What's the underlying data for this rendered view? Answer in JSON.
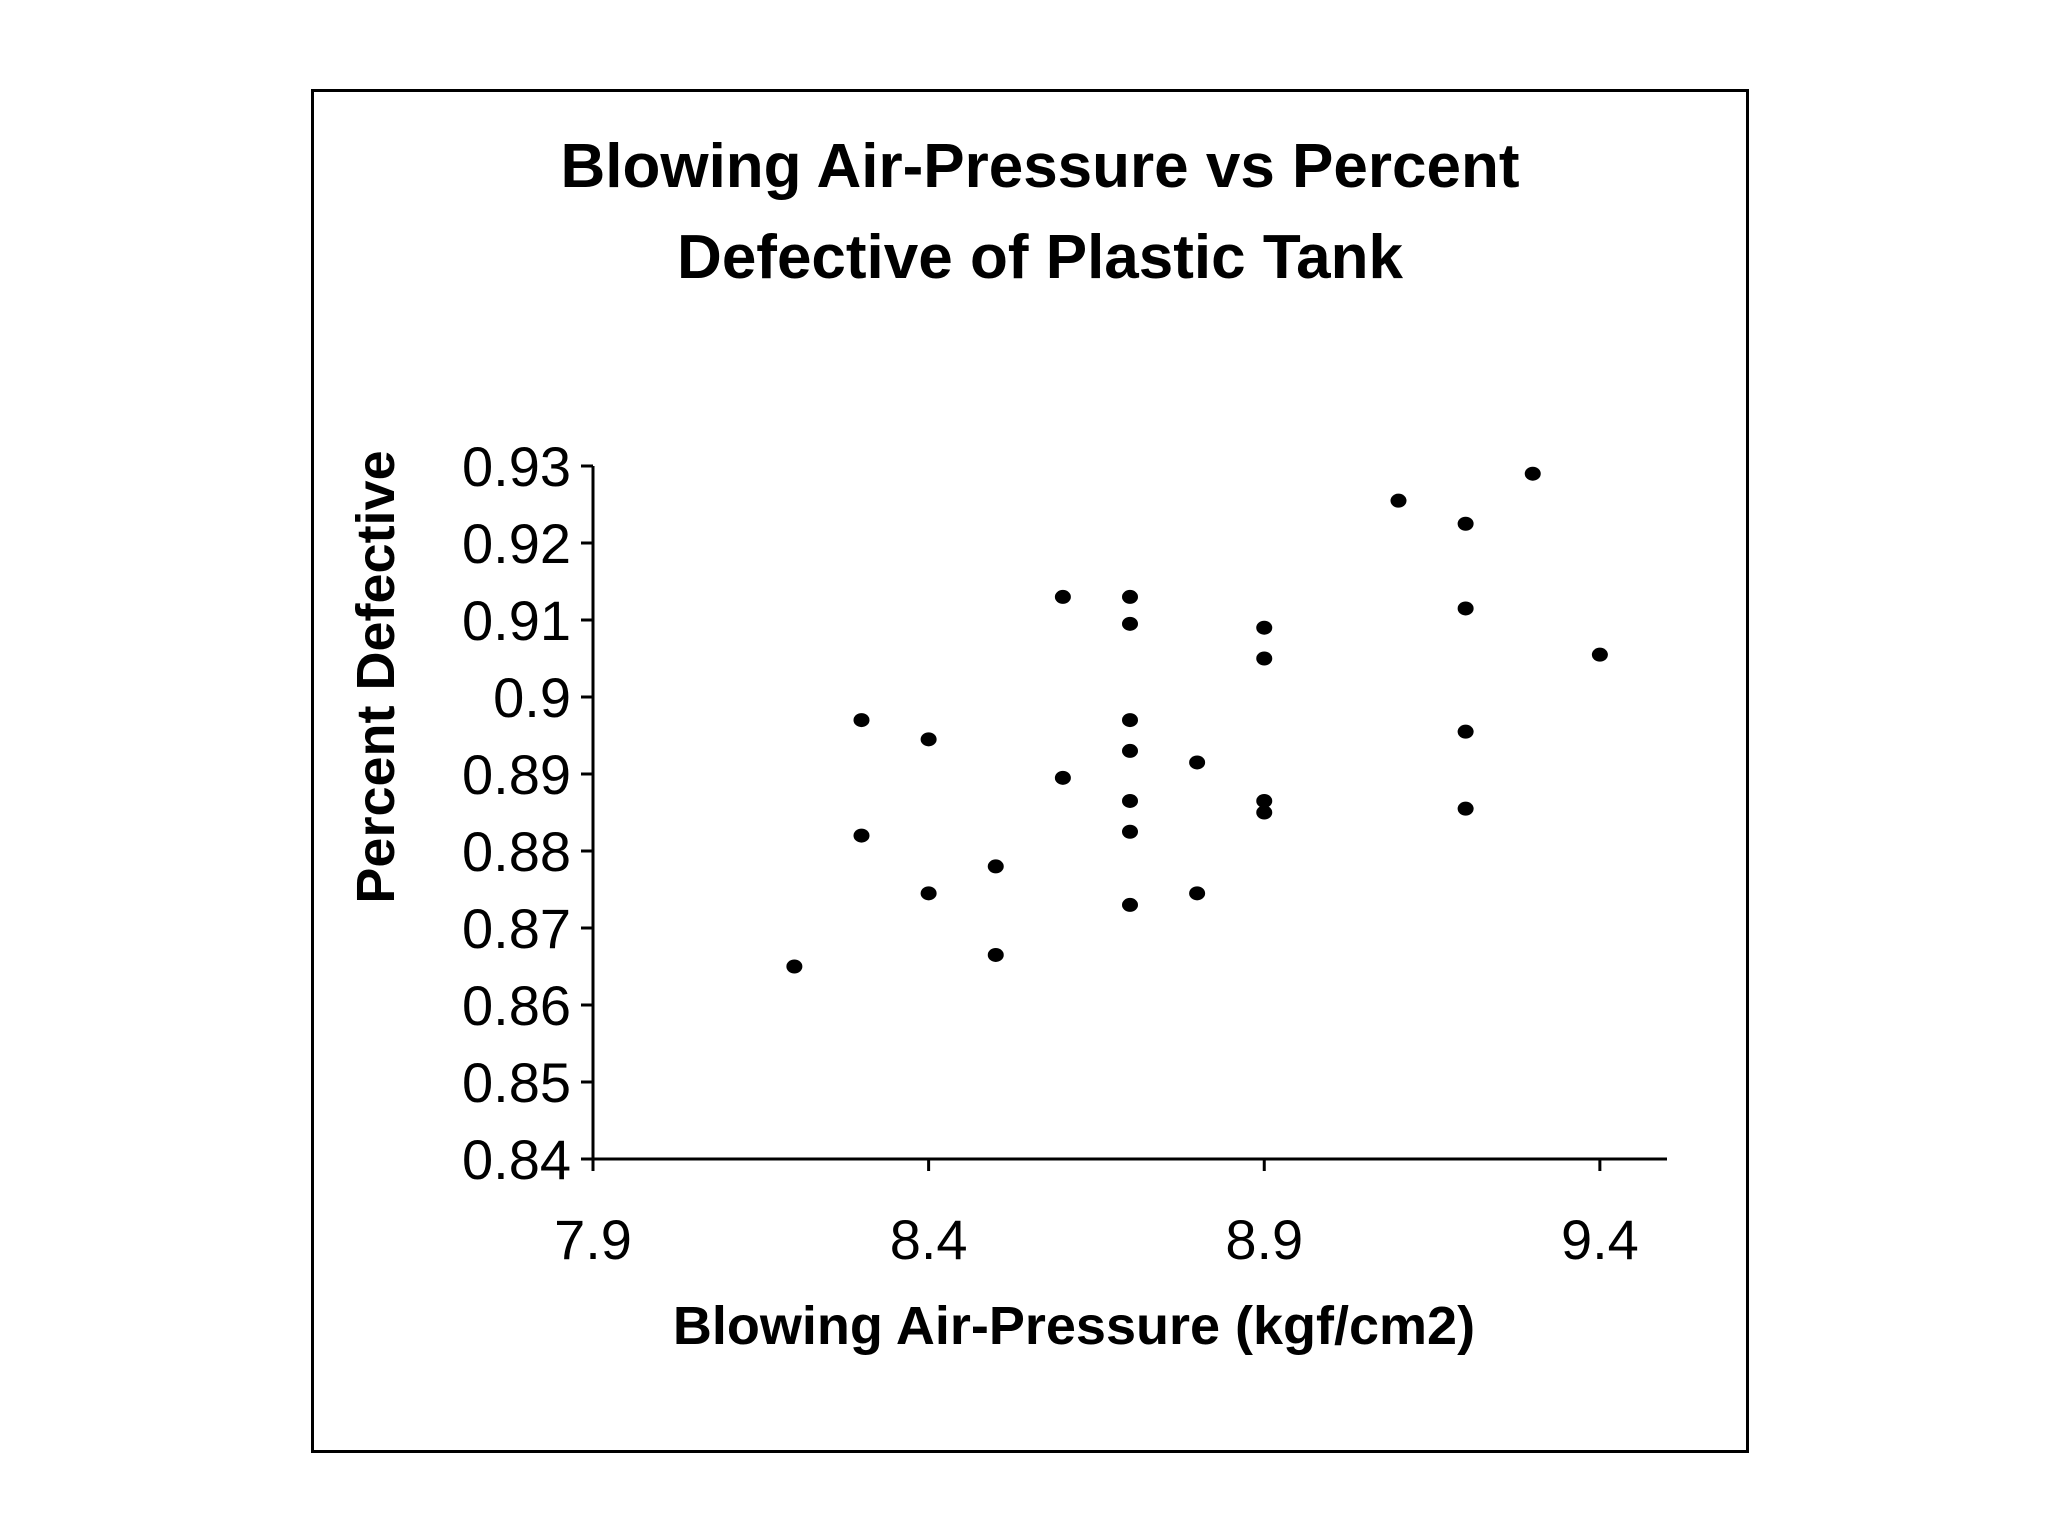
{
  "chart_data": {
    "type": "scatter",
    "title_lines": [
      "Blowing Air-Pressure vs Percent",
      "Defective of Plastic Tank"
    ],
    "xlabel": "Blowing Air-Pressure (kgf/cm2)",
    "ylabel": "Percent Defective",
    "xlim": [
      7.9,
      9.5
    ],
    "ylim": [
      0.84,
      0.93
    ],
    "x_ticks": [
      {
        "value": 7.9,
        "label": "7.9"
      },
      {
        "value": 8.4,
        "label": "8.4"
      },
      {
        "value": 8.9,
        "label": "8.9"
      },
      {
        "value": 9.4,
        "label": "9.4"
      }
    ],
    "y_ticks": [
      {
        "value": 0.84,
        "label": "0.84"
      },
      {
        "value": 0.85,
        "label": "0.85"
      },
      {
        "value": 0.86,
        "label": "0.86"
      },
      {
        "value": 0.87,
        "label": "0.87"
      },
      {
        "value": 0.88,
        "label": "0.88"
      },
      {
        "value": 0.89,
        "label": "0.89"
      },
      {
        "value": 0.9,
        "label": "0.9"
      },
      {
        "value": 0.91,
        "label": "0.91"
      },
      {
        "value": 0.92,
        "label": "0.92"
      },
      {
        "value": 0.93,
        "label": "0.93"
      }
    ],
    "grid": false,
    "marker_color": "#000000",
    "points": [
      {
        "x": 8.2,
        "y": 0.865
      },
      {
        "x": 8.3,
        "y": 0.897
      },
      {
        "x": 8.3,
        "y": 0.882
      },
      {
        "x": 8.4,
        "y": 0.8945
      },
      {
        "x": 8.4,
        "y": 0.8745
      },
      {
        "x": 8.5,
        "y": 0.878
      },
      {
        "x": 8.5,
        "y": 0.8665
      },
      {
        "x": 8.6,
        "y": 0.913
      },
      {
        "x": 8.6,
        "y": 0.8895
      },
      {
        "x": 8.7,
        "y": 0.913
      },
      {
        "x": 8.7,
        "y": 0.9095
      },
      {
        "x": 8.7,
        "y": 0.897
      },
      {
        "x": 8.7,
        "y": 0.893
      },
      {
        "x": 8.7,
        "y": 0.8865
      },
      {
        "x": 8.7,
        "y": 0.8825
      },
      {
        "x": 8.7,
        "y": 0.873
      },
      {
        "x": 8.8,
        "y": 0.8915
      },
      {
        "x": 8.8,
        "y": 0.8745
      },
      {
        "x": 8.9,
        "y": 0.909
      },
      {
        "x": 8.9,
        "y": 0.905
      },
      {
        "x": 8.9,
        "y": 0.8865
      },
      {
        "x": 8.9,
        "y": 0.885
      },
      {
        "x": 9.1,
        "y": 0.9255
      },
      {
        "x": 9.2,
        "y": 0.9225
      },
      {
        "x": 9.2,
        "y": 0.9115
      },
      {
        "x": 9.2,
        "y": 0.8955
      },
      {
        "x": 9.2,
        "y": 0.8855
      },
      {
        "x": 9.3,
        "y": 0.929
      },
      {
        "x": 9.4,
        "y": 0.9055
      }
    ]
  }
}
